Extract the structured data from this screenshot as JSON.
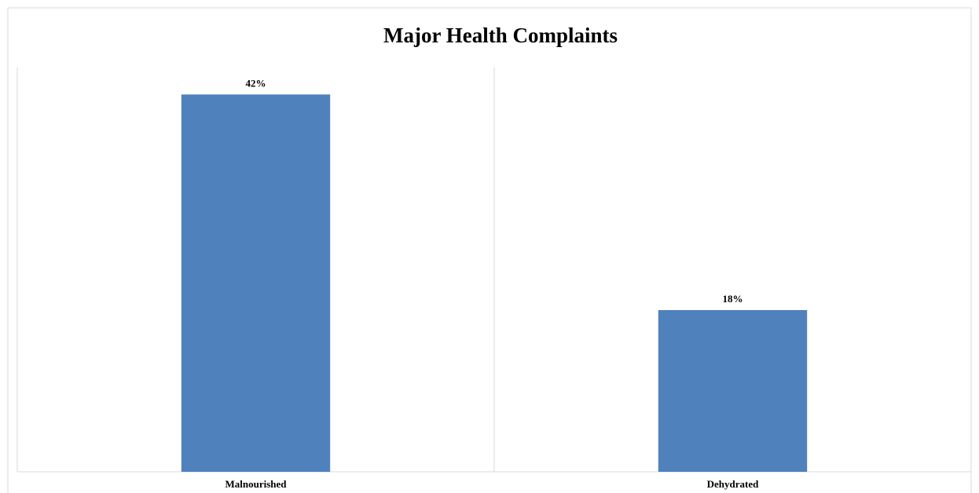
{
  "chart_data": {
    "type": "bar",
    "title": "Major Health Complaints",
    "categories": [
      "Malnourished",
      "Dehydrated"
    ],
    "values": [
      42,
      18
    ],
    "value_labels": [
      "42%",
      "18%"
    ],
    "color": "#4f81bd",
    "ylim": [
      0,
      45
    ]
  }
}
